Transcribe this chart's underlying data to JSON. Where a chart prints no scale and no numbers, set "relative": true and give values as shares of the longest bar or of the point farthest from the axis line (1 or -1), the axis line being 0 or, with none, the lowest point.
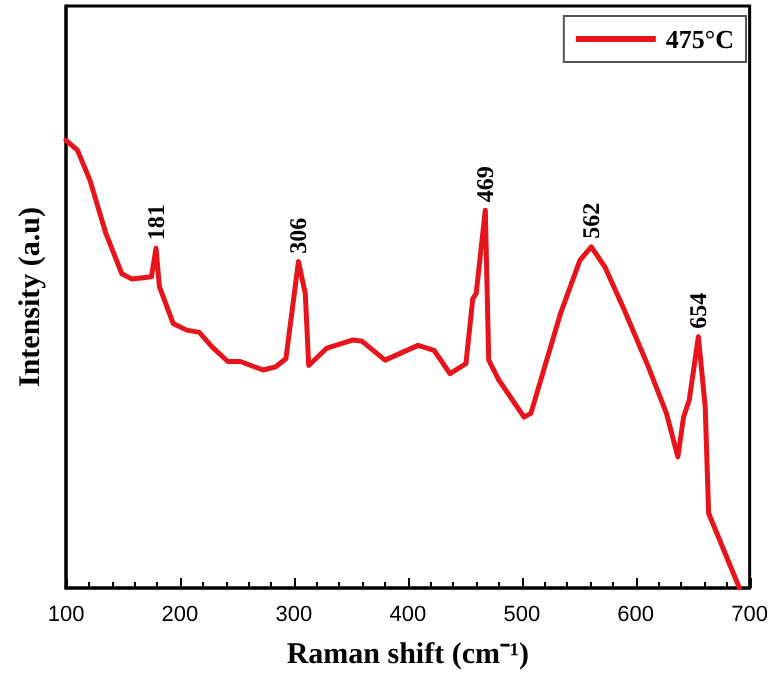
{
  "chart_data": {
    "type": "line",
    "xlabel": "Raman shift (cm⁻¹)",
    "ylabel": "Intensity (a.u)",
    "relative": true,
    "legend": "top right",
    "grid": false,
    "marker": "none",
    "line_style": "solid",
    "xlim": [
      100,
      700
    ],
    "xticks": [
      100,
      200,
      300,
      400,
      500,
      600,
      700
    ],
    "tick_labels": "x",
    "series": [
      {
        "name": "475°C",
        "color": "#e8141b",
        "x": [
          100,
          110,
          121,
          135,
          149,
          158,
          175,
          179,
          182,
          194,
          206,
          217,
          228,
          242,
          253,
          273,
          284,
          293,
          304,
          310,
          313,
          329,
          352,
          360,
          380,
          409,
          423,
          437,
          451,
          457,
          460,
          468,
          471,
          480,
          502,
          508,
          534,
          551,
          561,
          573,
          590,
          610,
          627,
          637,
          642,
          647,
          655,
          661,
          664,
          691
        ],
        "values": [
          1.0,
          0.978,
          0.911,
          0.792,
          0.702,
          0.69,
          0.695,
          0.759,
          0.673,
          0.591,
          0.576,
          0.571,
          0.539,
          0.506,
          0.506,
          0.487,
          0.494,
          0.512,
          0.729,
          0.658,
          0.497,
          0.536,
          0.554,
          0.551,
          0.509,
          0.542,
          0.531,
          0.479,
          0.501,
          0.646,
          0.658,
          0.844,
          0.509,
          0.464,
          0.382,
          0.39,
          0.613,
          0.732,
          0.762,
          0.717,
          0.621,
          0.501,
          0.39,
          0.293,
          0.382,
          0.42,
          0.561,
          0.405,
          0.167,
          0
        ]
      }
    ],
    "annotations": [
      {
        "text": "181",
        "x": 179,
        "y": 0.759
      },
      {
        "text": "306",
        "x": 304,
        "y": 0.729
      },
      {
        "text": "469",
        "x": 468,
        "y": 0.844
      },
      {
        "text": "562",
        "x": 561,
        "y": 0.762
      },
      {
        "text": "654",
        "x": 655,
        "y": 0.561
      }
    ]
  }
}
